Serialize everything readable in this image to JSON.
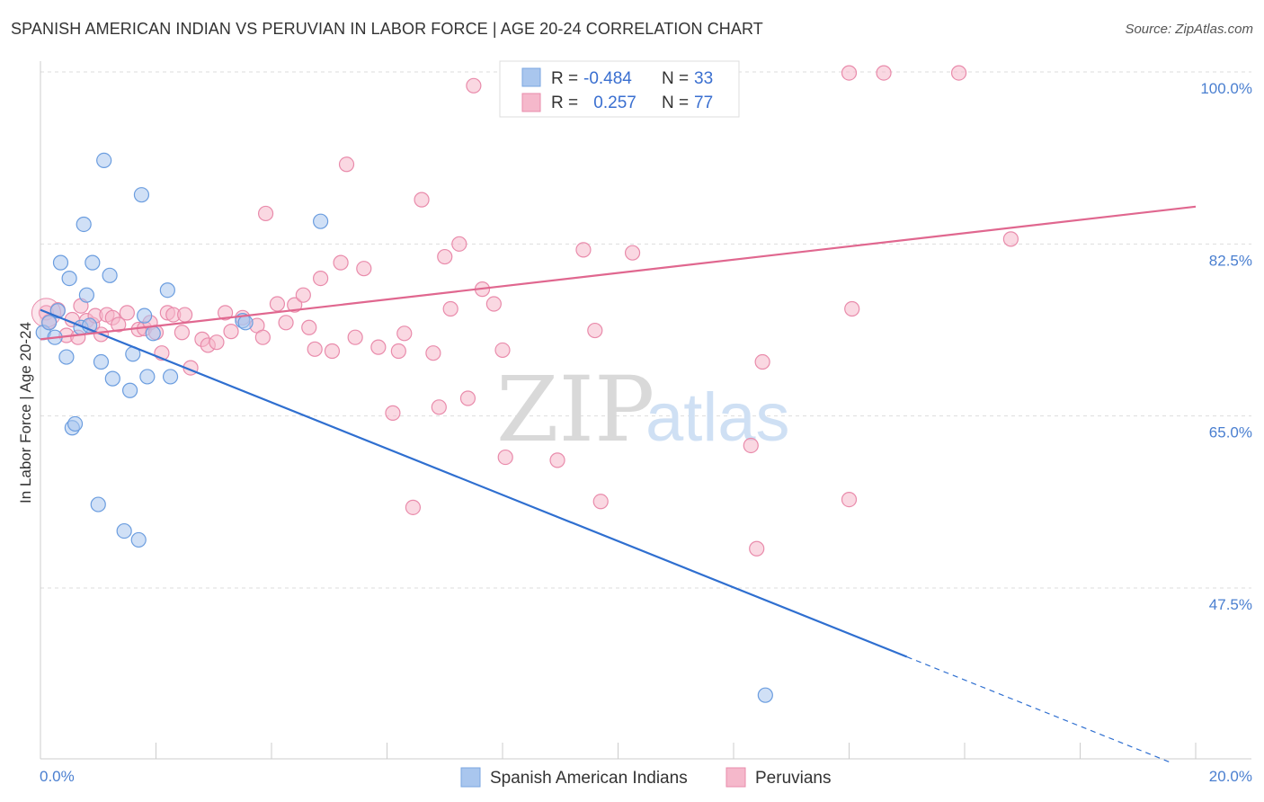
{
  "header": {
    "title": "SPANISH AMERICAN INDIAN VS PERUVIAN IN LABOR FORCE | AGE 20-24 CORRELATION CHART",
    "source": "Source: ZipAtlas.com"
  },
  "watermark": {
    "zip": "ZIP",
    "atlas": "atlas"
  },
  "colors": {
    "blue": "#a9c6ee",
    "blue_line": "#2f6fd0",
    "pink": "#f5b8cb",
    "pink_line": "#e0678f",
    "grid": "#dddddd",
    "tick_label": "#4a7fd0"
  },
  "legend": {
    "rows": [
      {
        "r_label": "R =",
        "r_value": "-0.484",
        "n_label": "N =",
        "n_value": "33"
      },
      {
        "r_label": "R =",
        "r_value": " 0.257",
        "n_label": "N =",
        "n_value": "77"
      }
    ]
  },
  "chart_data": {
    "type": "scatter",
    "xlabel": "",
    "ylabel": "In Labor Force | Age 20-24",
    "xlim": [
      0,
      20
    ],
    "ylim": [
      32,
      100
    ],
    "x_tick_labels": [
      "0.0%",
      "20.0%"
    ],
    "y_ticks": [
      47.5,
      65.0,
      82.5,
      100.0
    ],
    "y_tick_labels": [
      "47.5%",
      "65.0%",
      "82.5%",
      "100.0%"
    ],
    "grid": true,
    "legend_position": "top-center",
    "series": [
      {
        "name": "Spanish American Indians",
        "r": -0.484,
        "n": 33,
        "trend": {
          "x0": 0.0,
          "y0": 75.8,
          "x1": 15.0,
          "y1": 40.5,
          "dashed_to_x": 19.6
        },
        "points": [
          [
            0.05,
            73.5
          ],
          [
            0.15,
            74.5
          ],
          [
            0.25,
            73.0
          ],
          [
            0.3,
            75.7
          ],
          [
            0.35,
            80.6
          ],
          [
            0.45,
            71.0
          ],
          [
            0.5,
            79.0
          ],
          [
            0.55,
            63.8
          ],
          [
            0.6,
            64.2
          ],
          [
            0.7,
            74.0
          ],
          [
            0.75,
            84.5
          ],
          [
            0.8,
            77.3
          ],
          [
            0.85,
            74.2
          ],
          [
            0.9,
            80.6
          ],
          [
            1.0,
            56.0
          ],
          [
            1.05,
            70.5
          ],
          [
            1.1,
            91.0
          ],
          [
            1.2,
            79.3
          ],
          [
            1.25,
            68.8
          ],
          [
            1.45,
            53.3
          ],
          [
            1.55,
            67.6
          ],
          [
            1.6,
            71.3
          ],
          [
            1.7,
            52.4
          ],
          [
            1.75,
            87.5
          ],
          [
            1.8,
            75.2
          ],
          [
            1.85,
            69.0
          ],
          [
            2.2,
            77.8
          ],
          [
            2.25,
            69.0
          ],
          [
            3.5,
            74.7
          ],
          [
            3.55,
            74.5
          ],
          [
            4.85,
            84.8
          ],
          [
            12.55,
            36.6
          ],
          [
            1.95,
            73.4
          ]
        ]
      },
      {
        "name": "Peruvians",
        "r": 0.257,
        "n": 77,
        "trend": {
          "x0": 0.0,
          "y0": 72.8,
          "x1": 20.0,
          "y1": 86.3
        },
        "points": [
          [
            0.1,
            75.5
          ],
          [
            0.15,
            74.6
          ],
          [
            0.3,
            75.8
          ],
          [
            0.45,
            73.2
          ],
          [
            0.55,
            74.8
          ],
          [
            0.65,
            73.0
          ],
          [
            0.7,
            76.2
          ],
          [
            0.8,
            74.7
          ],
          [
            0.9,
            74.3
          ],
          [
            0.95,
            75.2
          ],
          [
            1.05,
            73.3
          ],
          [
            1.15,
            75.3
          ],
          [
            1.25,
            75.0
          ],
          [
            1.35,
            74.3
          ],
          [
            1.5,
            75.5
          ],
          [
            1.7,
            73.8
          ],
          [
            1.8,
            73.9
          ],
          [
            1.9,
            74.5
          ],
          [
            2.0,
            73.5
          ],
          [
            2.1,
            71.4
          ],
          [
            2.2,
            75.5
          ],
          [
            2.3,
            75.3
          ],
          [
            2.45,
            73.5
          ],
          [
            2.5,
            75.3
          ],
          [
            2.6,
            69.9
          ],
          [
            2.8,
            72.8
          ],
          [
            2.9,
            72.2
          ],
          [
            3.05,
            72.5
          ],
          [
            3.2,
            75.5
          ],
          [
            3.3,
            73.6
          ],
          [
            3.5,
            75.0
          ],
          [
            3.75,
            74.2
          ],
          [
            3.85,
            73.0
          ],
          [
            3.9,
            85.6
          ],
          [
            4.1,
            76.4
          ],
          [
            4.25,
            74.5
          ],
          [
            4.4,
            76.3
          ],
          [
            4.55,
            77.3
          ],
          [
            4.65,
            74.0
          ],
          [
            4.75,
            71.8
          ],
          [
            4.85,
            79.0
          ],
          [
            5.05,
            71.6
          ],
          [
            5.2,
            80.6
          ],
          [
            5.3,
            90.6
          ],
          [
            5.45,
            73.0
          ],
          [
            5.6,
            80.0
          ],
          [
            5.85,
            72.0
          ],
          [
            6.1,
            65.3
          ],
          [
            6.2,
            71.6
          ],
          [
            6.3,
            73.4
          ],
          [
            6.45,
            55.7
          ],
          [
            6.6,
            87.0
          ],
          [
            6.8,
            71.4
          ],
          [
            6.9,
            65.9
          ],
          [
            7.0,
            81.2
          ],
          [
            7.1,
            75.9
          ],
          [
            7.25,
            82.5
          ],
          [
            7.4,
            66.8
          ],
          [
            7.5,
            98.6
          ],
          [
            7.65,
            77.9
          ],
          [
            7.85,
            76.4
          ],
          [
            8.0,
            71.7
          ],
          [
            8.05,
            60.8
          ],
          [
            8.95,
            60.5
          ],
          [
            9.4,
            81.9
          ],
          [
            9.6,
            73.7
          ],
          [
            9.7,
            56.3
          ],
          [
            10.25,
            81.6
          ],
          [
            12.3,
            62.0
          ],
          [
            12.4,
            51.5
          ],
          [
            12.5,
            70.5
          ],
          [
            14.0,
            56.5
          ],
          [
            14.05,
            75.9
          ],
          [
            14.0,
            99.9
          ],
          [
            14.6,
            99.9
          ],
          [
            15.9,
            99.9
          ],
          [
            16.8,
            83.0
          ]
        ]
      }
    ]
  }
}
